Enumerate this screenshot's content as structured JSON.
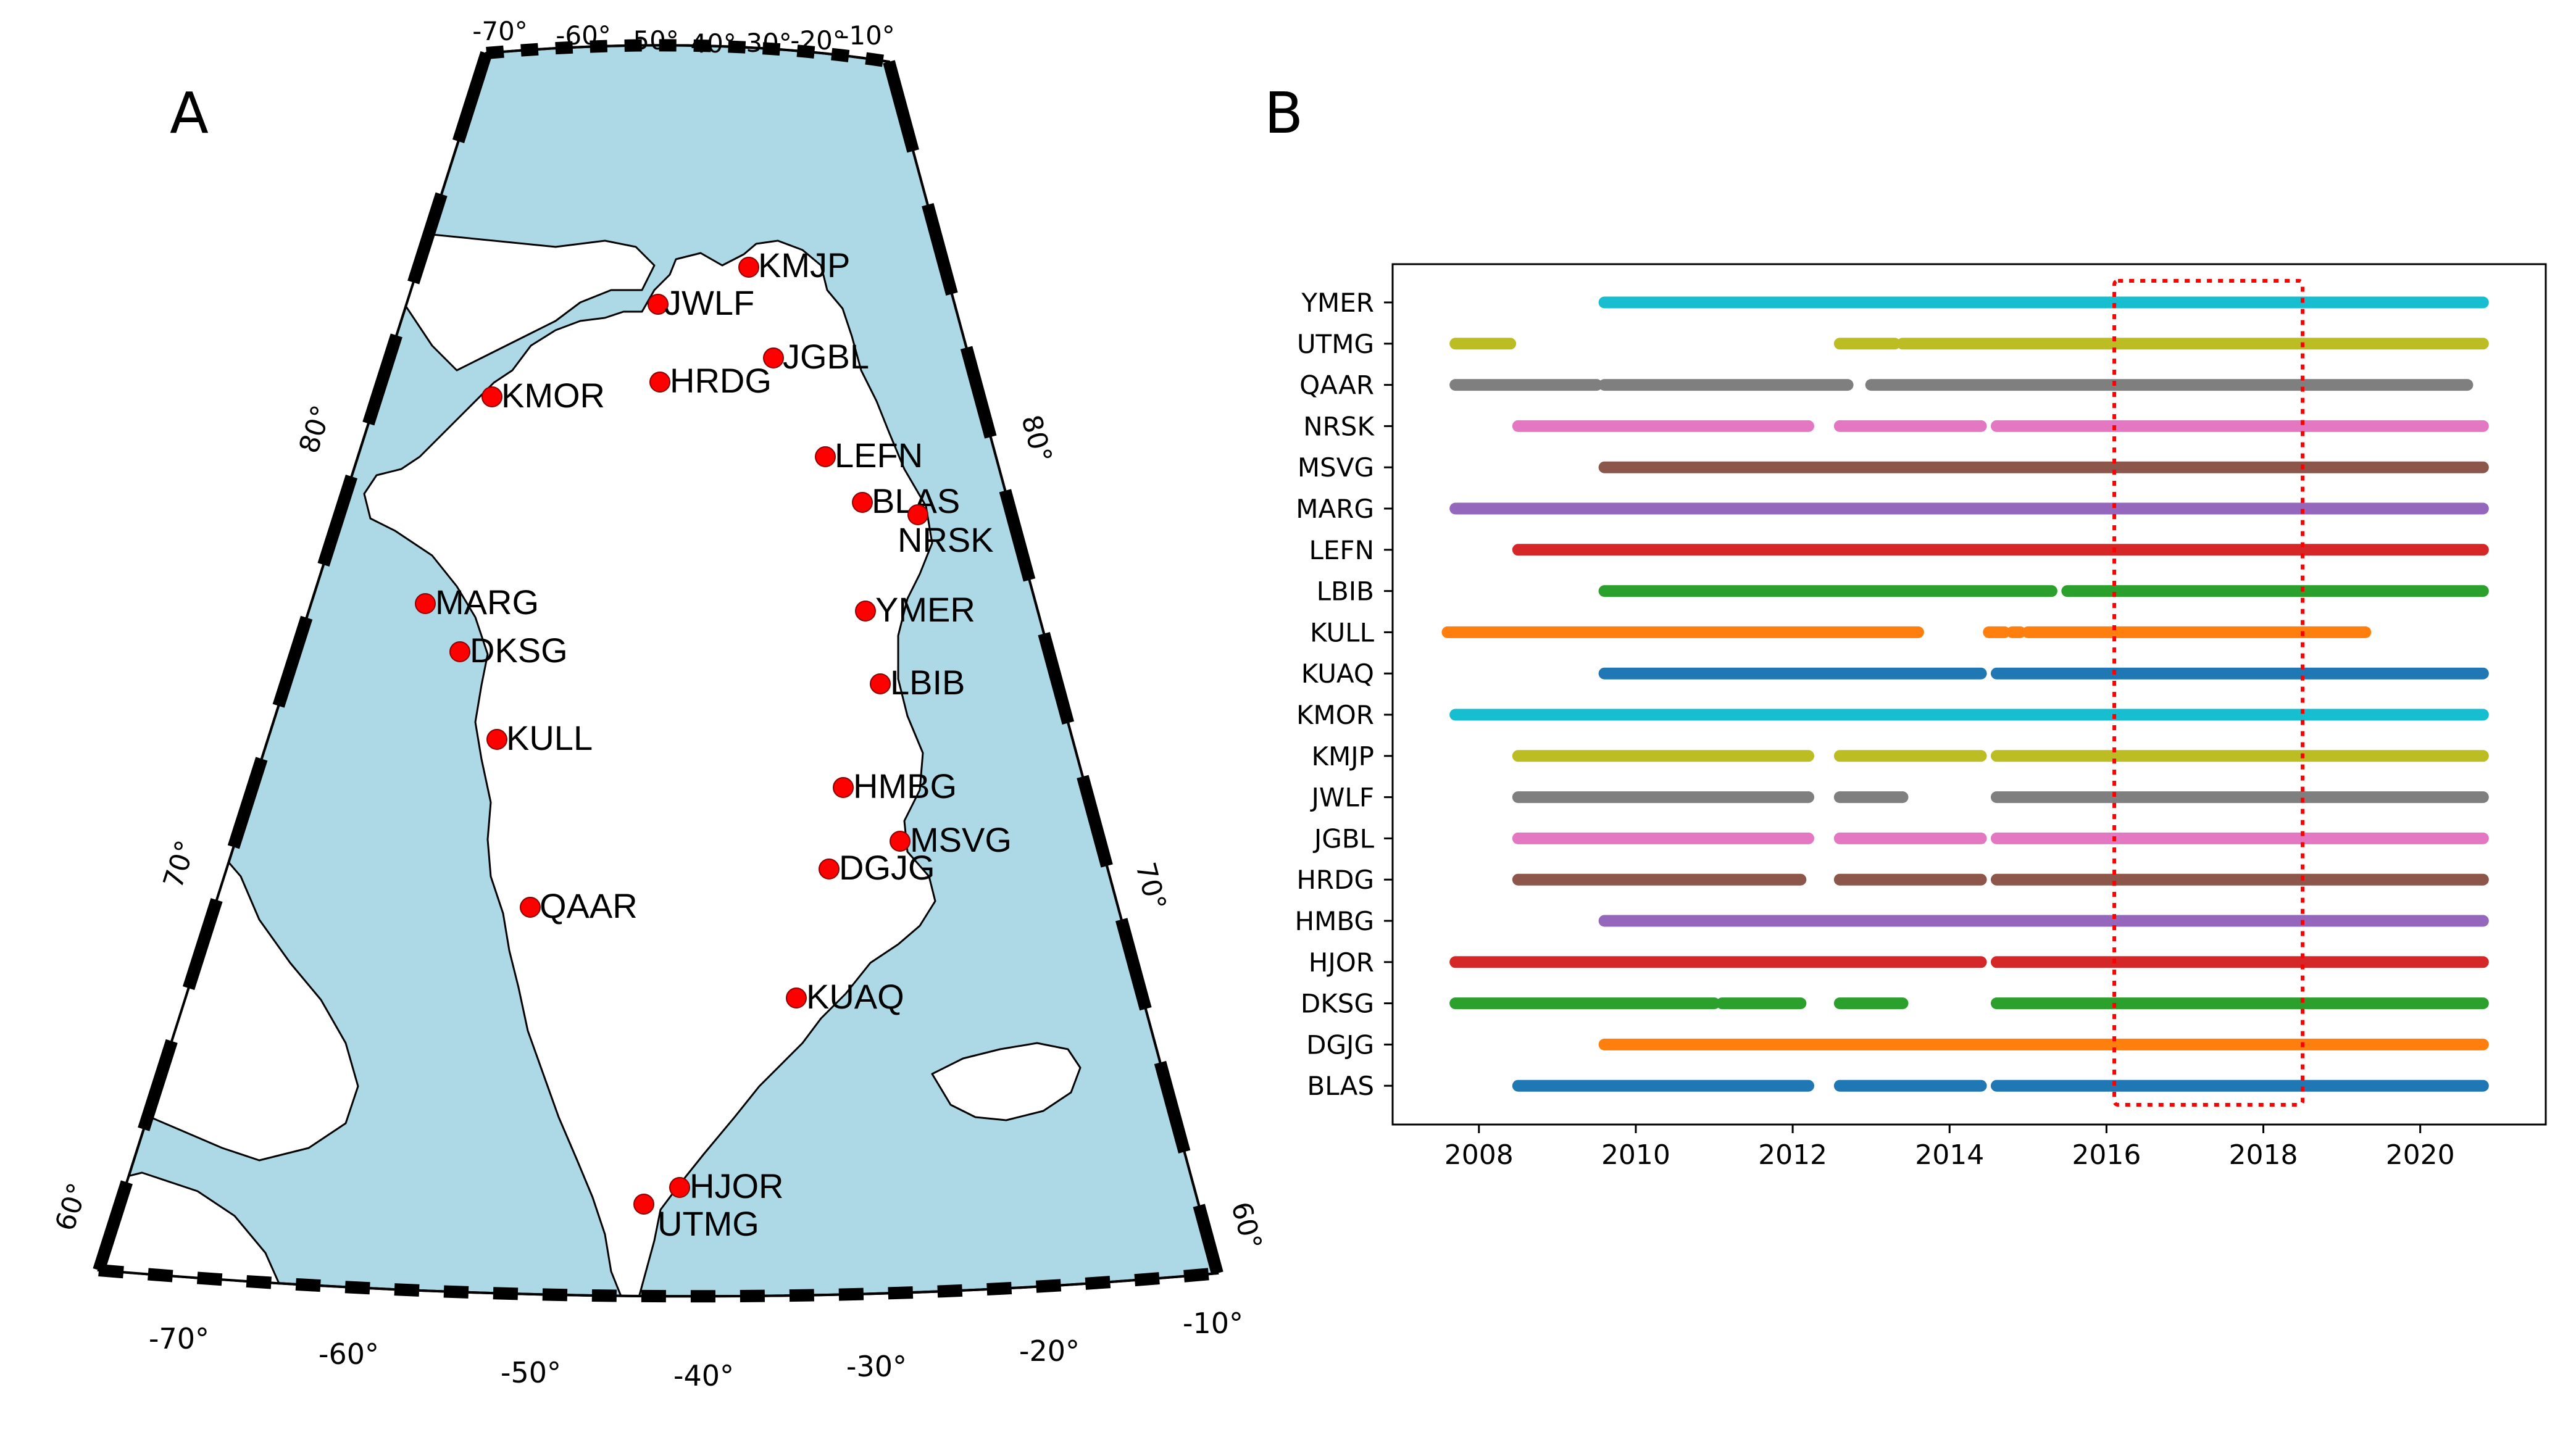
{
  "panel_a": {
    "label": "A",
    "top_lon_labels": [
      "-70°",
      "-60°",
      "-50°",
      "-40°",
      "-30°",
      "-20°",
      "-10°"
    ],
    "bottom_lon_labels": [
      "-70°",
      "-60°",
      "-50°",
      "-40°",
      "-30°",
      "-20°",
      "-10°"
    ],
    "left_lat_labels": [
      "80°",
      "70°",
      "60°"
    ],
    "right_lat_labels": [
      "80°",
      "70°",
      "60°"
    ],
    "colors": {
      "ocean": "#add8e6",
      "land": "#ffffff",
      "station": "#ff0000",
      "coast": "#000000"
    },
    "stations": [
      "KMJP",
      "JWLF",
      "JGBL",
      "HRDG",
      "KMOR",
      "LEFN",
      "BLAS",
      "NRSK",
      "MARG",
      "DKSG",
      "YMER",
      "LBIB",
      "KULL",
      "HMBG",
      "MSVG",
      "DGJG",
      "QAAR",
      "KUAQ",
      "HJOR",
      "UTMG"
    ]
  },
  "panel_b": {
    "label": "B",
    "chart_data": {
      "type": "timeline",
      "title": "",
      "xlabel": "",
      "ylabel": "",
      "xlim": [
        2006.9,
        2021.6
      ],
      "x_ticks": [
        2008,
        2010,
        2012,
        2014,
        2016,
        2018,
        2020
      ],
      "x_tick_labels": [
        "2008",
        "2010",
        "2012",
        "2014",
        "2016",
        "2018",
        "2020"
      ],
      "highlight": {
        "x_range": [
          2016.1,
          2018.5
        ],
        "color": "#ff0000",
        "style": "dotted"
      },
      "series": [
        {
          "name": "YMER",
          "color": "#17becf",
          "segments": [
            [
              2009.6,
              2020.8
            ]
          ]
        },
        {
          "name": "UTMG",
          "color": "#bcbd22",
          "segments": [
            [
              2007.7,
              2008.4
            ],
            [
              2012.6,
              2013.3
            ],
            [
              2013.4,
              2020.8
            ]
          ]
        },
        {
          "name": "QAAR",
          "color": "#7f7f7f",
          "segments": [
            [
              2007.7,
              2009.5
            ],
            [
              2009.6,
              2012.7
            ],
            [
              2013.0,
              2020.6
            ]
          ]
        },
        {
          "name": "NRSK",
          "color": "#e377c2",
          "segments": [
            [
              2008.5,
              2012.2
            ],
            [
              2012.6,
              2014.4
            ],
            [
              2014.6,
              2020.8
            ]
          ]
        },
        {
          "name": "MSVG",
          "color": "#8c564b",
          "segments": [
            [
              2009.6,
              2020.8
            ]
          ]
        },
        {
          "name": "MARG",
          "color": "#9467bd",
          "segments": [
            [
              2007.7,
              2020.8
            ]
          ]
        },
        {
          "name": "LEFN",
          "color": "#d62728",
          "segments": [
            [
              2008.5,
              2020.8
            ]
          ]
        },
        {
          "name": "LBIB",
          "color": "#2ca02c",
          "segments": [
            [
              2009.6,
              2015.3
            ],
            [
              2015.5,
              2020.8
            ]
          ]
        },
        {
          "name": "KULL",
          "color": "#ff7f0e",
          "segments": [
            [
              2007.6,
              2013.6
            ],
            [
              2014.5,
              2014.7
            ],
            [
              2014.8,
              2014.9
            ],
            [
              2015.0,
              2019.3
            ]
          ]
        },
        {
          "name": "KUAQ",
          "color": "#1f77b4",
          "segments": [
            [
              2009.6,
              2014.4
            ],
            [
              2014.6,
              2020.8
            ]
          ]
        },
        {
          "name": "KMOR",
          "color": "#17becf",
          "segments": [
            [
              2007.7,
              2020.8
            ]
          ]
        },
        {
          "name": "KMJP",
          "color": "#bcbd22",
          "segments": [
            [
              2008.5,
              2012.2
            ],
            [
              2012.6,
              2014.4
            ],
            [
              2014.6,
              2020.8
            ]
          ]
        },
        {
          "name": "JWLF",
          "color": "#7f7f7f",
          "segments": [
            [
              2008.5,
              2012.2
            ],
            [
              2012.6,
              2013.4
            ],
            [
              2014.6,
              2020.8
            ]
          ]
        },
        {
          "name": "JGBL",
          "color": "#e377c2",
          "segments": [
            [
              2008.5,
              2012.2
            ],
            [
              2012.6,
              2014.4
            ],
            [
              2014.6,
              2020.8
            ]
          ]
        },
        {
          "name": "HRDG",
          "color": "#8c564b",
          "segments": [
            [
              2008.5,
              2012.1
            ],
            [
              2012.6,
              2014.4
            ],
            [
              2014.6,
              2020.8
            ]
          ]
        },
        {
          "name": "HMBG",
          "color": "#9467bd",
          "segments": [
            [
              2009.6,
              2020.8
            ]
          ]
        },
        {
          "name": "HJOR",
          "color": "#d62728",
          "segments": [
            [
              2007.7,
              2014.4
            ],
            [
              2014.6,
              2020.8
            ]
          ]
        },
        {
          "name": "DKSG",
          "color": "#2ca02c",
          "segments": [
            [
              2007.7,
              2011.0
            ],
            [
              2011.1,
              2012.1
            ],
            [
              2012.6,
              2013.4
            ],
            [
              2014.6,
              2020.8
            ]
          ]
        },
        {
          "name": "DGJG",
          "color": "#ff7f0e",
          "segments": [
            [
              2009.6,
              2020.8
            ]
          ]
        },
        {
          "name": "BLAS",
          "color": "#1f77b4",
          "segments": [
            [
              2008.5,
              2012.2
            ],
            [
              2012.6,
              2014.4
            ],
            [
              2014.6,
              2020.8
            ]
          ]
        }
      ]
    }
  }
}
